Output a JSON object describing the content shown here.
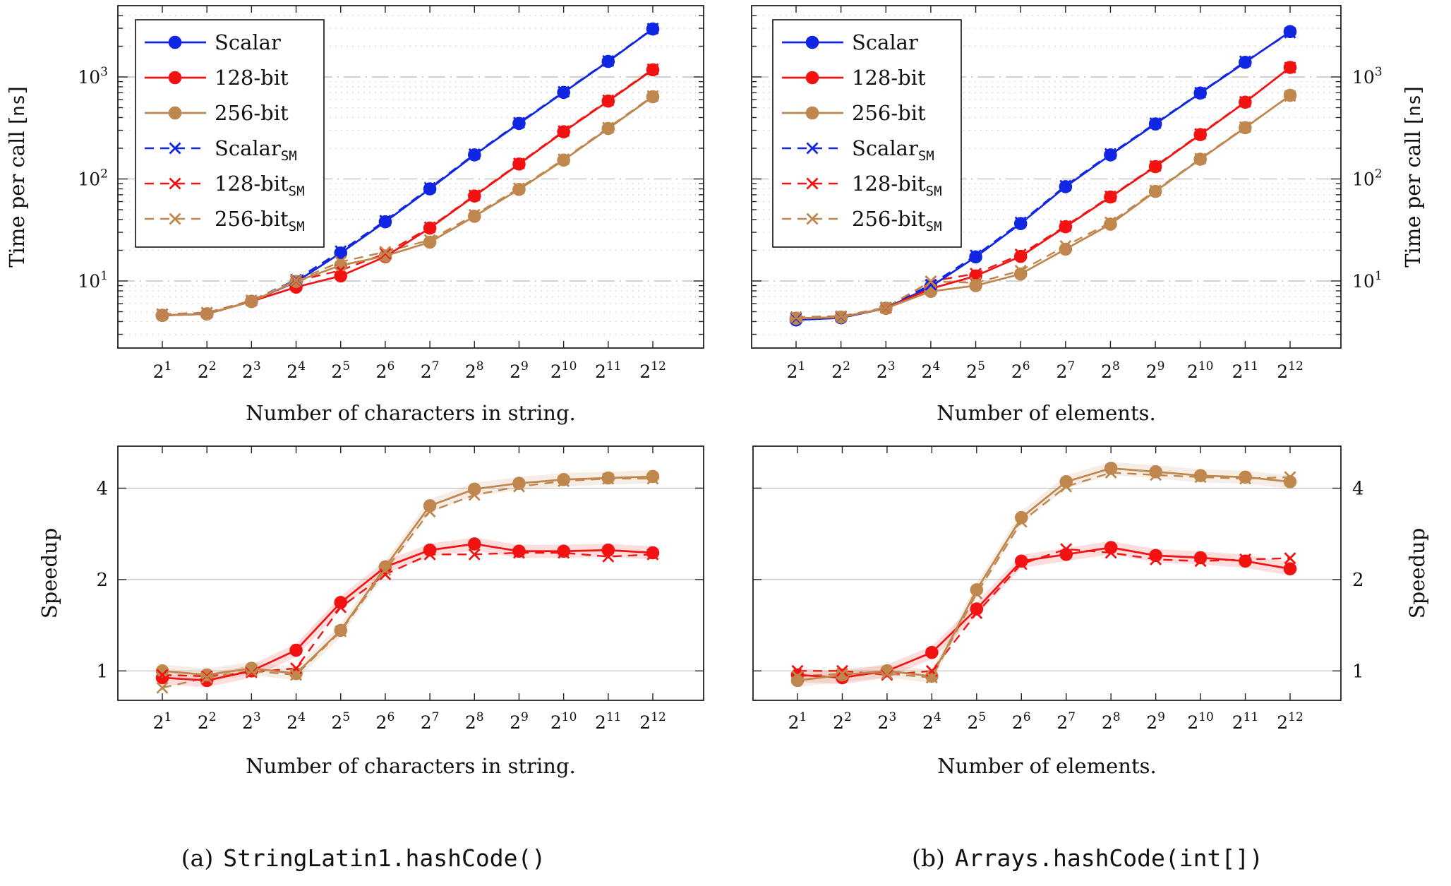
{
  "figure": {
    "captions": {
      "a": {
        "index": "(a)",
        "code": "StringLatin1.hashCode()"
      },
      "b": {
        "index": "(b)",
        "code": "Arrays.hashCode(int[])"
      }
    }
  },
  "colors": {
    "scalar": "#1026e3",
    "bit128": "#f31212",
    "bit256": "#bf874d",
    "grid_major": "#b5b5b5",
    "grid_minor": "#cbcbcb",
    "grid_speedup": "#bfbfbf",
    "frame": "#141414",
    "text": "#111111"
  },
  "legend": {
    "entries": [
      {
        "label": "Scalar",
        "subscript": "",
        "series": "scalar"
      },
      {
        "label": "128-bit",
        "subscript": "",
        "series": "bit128"
      },
      {
        "label": "256-bit",
        "subscript": "",
        "series": "bit256"
      },
      {
        "label": "Scalar",
        "subscript": "SM",
        "series": "scalar_sm"
      },
      {
        "label": "128-bit",
        "subscript": "SM",
        "series": "bit128_sm"
      },
      {
        "label": "256-bit",
        "subscript": "SM",
        "series": "bit256_sm"
      }
    ]
  },
  "chart_data": [
    {
      "id": "time_per_call_string",
      "type": "line",
      "xlabel": "Number of characters in string.",
      "ylabel_prefix": "Time per call [",
      "ylabel_mono": "ns",
      "ylabel_suffix": "]",
      "xscale": "log2",
      "yscale": "log10",
      "x_tick_base": "2",
      "x_tick_exponents": [
        1,
        2,
        3,
        4,
        5,
        6,
        7,
        8,
        9,
        10,
        11,
        12
      ],
      "y_tick_base": "10",
      "y_tick_exponents": [
        1,
        2,
        3
      ],
      "x": [
        2,
        4,
        8,
        16,
        32,
        64,
        128,
        256,
        512,
        1024,
        2048,
        4096
      ],
      "ylim": [
        2.2,
        5000
      ],
      "legend": true,
      "series": [
        {
          "key": "scalar_sm",
          "name": "Scalar SM",
          "style": "dashed",
          "marker": "x",
          "values": [
            4.72,
            4.88,
            6.42,
            10.3,
            19.6,
            39,
            82,
            175,
            356,
            715,
            1435,
            2980
          ]
        },
        {
          "key": "bit128_sm",
          "name": "128-bit SM",
          "style": "dashed",
          "marker": "x",
          "values": [
            4.72,
            4.88,
            6.42,
            10.0,
            12.7,
            18.6,
            33.6,
            69,
            142,
            295,
            590,
            1190
          ]
        },
        {
          "key": "bit256_sm",
          "name": "256-bit SM",
          "style": "dashed",
          "marker": "x",
          "values": [
            4.72,
            4.88,
            6.42,
            10.15,
            15.4,
            19.3,
            25.2,
            44.5,
            81,
            156,
            318,
            650
          ]
        },
        {
          "key": "scalar",
          "name": "Scalar",
          "style": "solid",
          "marker": "circle",
          "values": [
            4.6,
            4.75,
            6.3,
            9.8,
            18.8,
            38,
            80,
            172,
            350,
            705,
            1420,
            2950
          ]
        },
        {
          "key": "bit128",
          "name": "128-bit",
          "style": "solid",
          "marker": "circle",
          "values": [
            4.6,
            4.75,
            6.3,
            8.7,
            11.2,
            17.3,
            33,
            68,
            140,
            290,
            580,
            1175
          ]
        },
        {
          "key": "bit256",
          "name": "256-bit",
          "style": "solid",
          "marker": "circle",
          "values": [
            4.6,
            4.75,
            6.3,
            9.9,
            14.2,
            17.6,
            24,
            43,
            79,
            153,
            312,
            640
          ]
        }
      ]
    },
    {
      "id": "time_per_call_elements",
      "type": "line",
      "xlabel": "Number of elements.",
      "ylabel_prefix": "Time per call [",
      "ylabel_mono": "ns",
      "ylabel_suffix": "]",
      "xscale": "log2",
      "yscale": "log10",
      "x_tick_base": "2",
      "x_tick_exponents": [
        1,
        2,
        3,
        4,
        5,
        6,
        7,
        8,
        9,
        10,
        11,
        12
      ],
      "y_tick_base": "10",
      "y_tick_exponents": [
        1,
        2,
        3
      ],
      "x": [
        2,
        4,
        8,
        16,
        32,
        64,
        128,
        256,
        512,
        1024,
        2048,
        4096
      ],
      "ylim": [
        2.2,
        5000
      ],
      "legend": true,
      "series": [
        {
          "key": "scalar_sm",
          "name": "Scalar SM",
          "style": "dashed",
          "marker": "x",
          "values": [
            4.3,
            4.47,
            5.5,
            9.2,
            17.8,
            37.5,
            86,
            176,
            352,
            702,
            1420,
            2720
          ]
        },
        {
          "key": "bit128_sm",
          "name": "128-bit SM",
          "style": "dashed",
          "marker": "x",
          "values": [
            4.42,
            4.52,
            5.45,
            9.9,
            11.8,
            18.2,
            34.6,
            67.5,
            134,
            276,
            570,
            1235
          ]
        },
        {
          "key": "bit256_sm",
          "name": "256-bit SM",
          "style": "dashed",
          "marker": "x",
          "values": [
            4.42,
            4.52,
            5.5,
            9.9,
            9.6,
            12.6,
            22,
            37.5,
            77,
            158,
            322,
            652
          ]
        },
        {
          "key": "scalar",
          "name": "Scalar",
          "style": "solid",
          "marker": "circle",
          "values": [
            4.15,
            4.35,
            5.4,
            8.8,
            17.2,
            36.5,
            84,
            172,
            346,
            695,
            1390,
            2780
          ]
        },
        {
          "key": "bit128",
          "name": "128-bit",
          "style": "solid",
          "marker": "circle",
          "values": [
            4.3,
            4.42,
            5.4,
            8.4,
            11.2,
            17.4,
            34,
            66.5,
            132,
            272,
            565,
            1240
          ]
        },
        {
          "key": "bit256",
          "name": "256-bit",
          "style": "solid",
          "marker": "circle",
          "values": [
            4.3,
            4.42,
            5.4,
            7.9,
            9.0,
            11.7,
            20.5,
            36,
            75.5,
            156,
            318,
            660
          ]
        }
      ]
    },
    {
      "id": "speedup_string",
      "type": "line",
      "xlabel": "Number of characters in string.",
      "ylabel_prefix": "Speedup",
      "ylabel_mono": "",
      "ylabel_suffix": "",
      "xscale": "log2",
      "yscale": "log2",
      "x_tick_base": "2",
      "x_tick_exponents": [
        1,
        2,
        3,
        4,
        5,
        6,
        7,
        8,
        9,
        10,
        11,
        12
      ],
      "y_ticks": [
        1,
        2,
        4
      ],
      "x": [
        2,
        4,
        8,
        16,
        32,
        64,
        128,
        256,
        512,
        1024,
        2048,
        4096
      ],
      "ylim": [
        0.8,
        5.5
      ],
      "band_frac": 0.05,
      "legend": false,
      "series": [
        {
          "key": "bit128_sm",
          "name": "128-bit SM",
          "style": "dashed",
          "marker": "x",
          "values": [
            0.97,
            0.96,
            0.99,
            1.02,
            1.62,
            2.08,
            2.42,
            2.42,
            2.45,
            2.45,
            2.38,
            2.42
          ]
        },
        {
          "key": "bit256_sm",
          "name": "256-bit SM",
          "style": "dashed",
          "marker": "x",
          "values": [
            0.88,
            0.95,
            1.0,
            0.97,
            1.35,
            2.15,
            3.35,
            3.8,
            4.05,
            4.22,
            4.3,
            4.3
          ]
        },
        {
          "key": "bit128",
          "name": "128-bit",
          "style": "solid",
          "marker": "circle",
          "band": true,
          "values": [
            0.95,
            0.93,
            1.0,
            1.17,
            1.68,
            2.2,
            2.5,
            2.62,
            2.48,
            2.48,
            2.5,
            2.45
          ]
        },
        {
          "key": "bit256",
          "name": "256-bit",
          "style": "solid",
          "marker": "circle",
          "band": true,
          "values": [
            1.0,
            0.97,
            1.02,
            0.98,
            1.36,
            2.2,
            3.5,
            3.97,
            4.15,
            4.27,
            4.32,
            4.37
          ]
        }
      ]
    },
    {
      "id": "speedup_elements",
      "type": "line",
      "xlabel": "Number of elements.",
      "ylabel_prefix": "Speedup",
      "ylabel_mono": "",
      "ylabel_suffix": "",
      "xscale": "log2",
      "yscale": "log2",
      "x_tick_base": "2",
      "x_tick_exponents": [
        1,
        2,
        3,
        4,
        5,
        6,
        7,
        8,
        9,
        10,
        11,
        12
      ],
      "y_ticks": [
        1,
        2,
        4
      ],
      "x": [
        2,
        4,
        8,
        16,
        32,
        64,
        128,
        256,
        512,
        1024,
        2048,
        4096
      ],
      "ylim": [
        0.8,
        5.5
      ],
      "band_frac": 0.05,
      "legend": false,
      "series": [
        {
          "key": "bit128_sm",
          "name": "128-bit SM",
          "style": "dashed",
          "marker": "x",
          "values": [
            1.0,
            1.0,
            0.97,
            1.0,
            1.55,
            2.25,
            2.52,
            2.45,
            2.33,
            2.3,
            2.33,
            2.35
          ]
        },
        {
          "key": "bit256_sm",
          "name": "256-bit SM",
          "style": "dashed",
          "marker": "x",
          "values": [
            0.96,
            0.98,
            0.98,
            0.95,
            1.8,
            3.1,
            4.05,
            4.5,
            4.42,
            4.35,
            4.3,
            4.35
          ]
        },
        {
          "key": "bit128",
          "name": "128-bit",
          "style": "solid",
          "marker": "circle",
          "band": true,
          "values": [
            0.97,
            0.95,
            1.0,
            1.15,
            1.6,
            2.3,
            2.42,
            2.55,
            2.4,
            2.36,
            2.3,
            2.17
          ]
        },
        {
          "key": "bit256",
          "name": "256-bit",
          "style": "solid",
          "marker": "circle",
          "band": true,
          "values": [
            0.93,
            0.97,
            1.0,
            0.96,
            1.85,
            3.2,
            4.2,
            4.65,
            4.53,
            4.4,
            4.35,
            4.2
          ]
        }
      ]
    }
  ]
}
